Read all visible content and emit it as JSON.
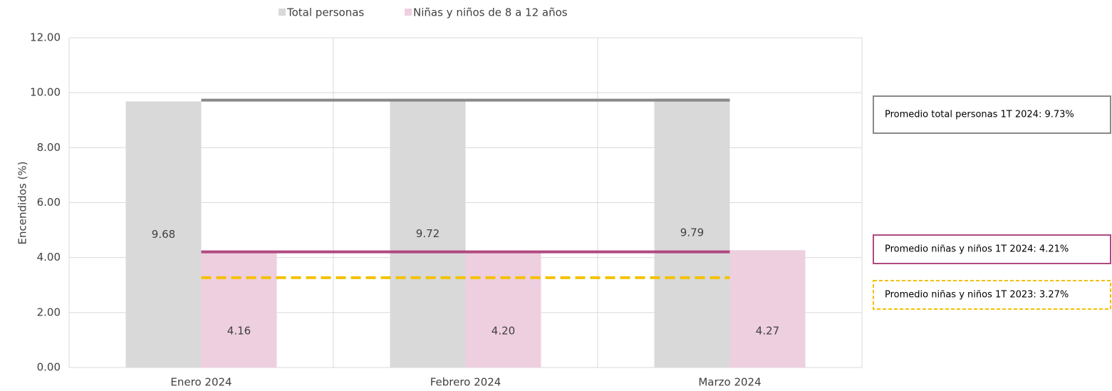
{
  "chart_data": {
    "type": "bar",
    "categories": [
      "Enero 2024",
      "Febrero 2024",
      "Marzo 2024"
    ],
    "series": [
      {
        "name": "Total personas",
        "color": "#d9d9d9",
        "values": [
          9.68,
          9.72,
          9.79
        ],
        "value_labels": [
          "9.68",
          "9.72",
          "9.79"
        ]
      },
      {
        "name": "Niñas y niños de 8 a 12 años",
        "color": "#eecfdf",
        "values": [
          4.16,
          4.2,
          4.27
        ],
        "value_labels": [
          "4.16",
          "4.20",
          "4.27"
        ]
      }
    ],
    "ylabel": "Encendidos (%)",
    "ylim": [
      0,
      12
    ],
    "yticks": [
      {
        "value": 0,
        "label": "0.00"
      },
      {
        "value": 2,
        "label": "2.00"
      },
      {
        "value": 4,
        "label": "4.00"
      },
      {
        "value": 6,
        "label": "6.00"
      },
      {
        "value": 8,
        "label": "8.00"
      },
      {
        "value": 10,
        "label": "10.00"
      },
      {
        "value": 12,
        "label": "12.00"
      }
    ],
    "grid": true,
    "legend": "top",
    "reference_lines": [
      {
        "label": "Promedio total personas 1T 2024: 9.73%",
        "value": 9.73,
        "color": "#898989",
        "dashed": false
      },
      {
        "label": "Promedio niñas y niños 1T 2024: 4.21%",
        "value": 4.21,
        "color": "#b04a80",
        "dashed": false
      },
      {
        "label": "Promedio niñas y niños 1T 2023: 3.27%",
        "value": 3.27,
        "color": "#f5c000",
        "dashed": true
      }
    ]
  }
}
